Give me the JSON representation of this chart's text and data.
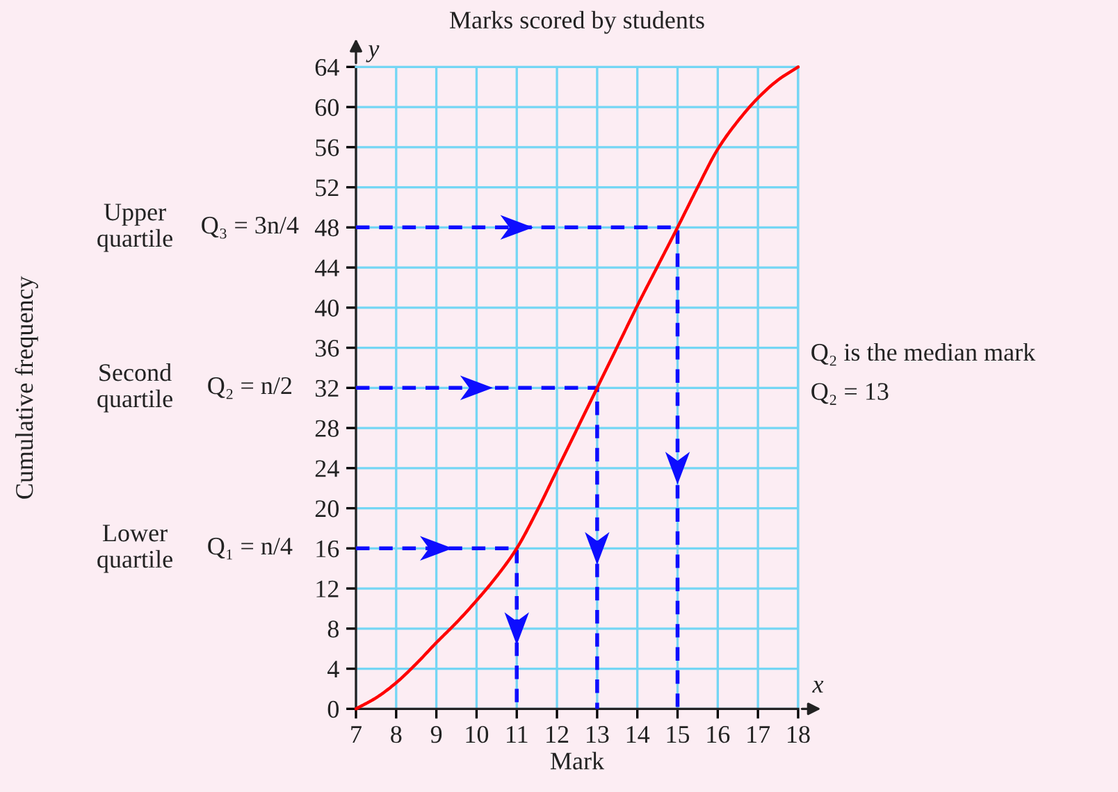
{
  "chart_data": {
    "type": "line",
    "title": "Marks scored by students",
    "xlabel": "Mark",
    "xlim": [
      7,
      18
    ],
    "ylim": [
      0,
      64
    ],
    "xticks": [
      7,
      8,
      9,
      10,
      11,
      12,
      13,
      14,
      15,
      16,
      17,
      18
    ],
    "yticks": [
      0,
      4,
      8,
      12,
      16,
      20,
      24,
      28,
      32,
      36,
      40,
      44,
      48,
      52,
      56,
      60,
      64
    ],
    "grid": true,
    "series": [
      {
        "color": "#ff0000",
        "x": [
          7,
          7.5,
          8,
          8.5,
          9,
          9.5,
          10,
          10.5,
          11,
          11.5,
          12,
          12.5,
          13,
          13.5,
          14,
          14.5,
          15,
          15.5,
          16,
          16.5,
          17,
          17.5,
          18
        ],
        "values": [
          0,
          1.1,
          2.6,
          4.5,
          6.6,
          8.6,
          10.8,
          13.2,
          16,
          19.7,
          23.8,
          27.9,
          32,
          36.1,
          40.2,
          44.1,
          48,
          52,
          55.8,
          58.6,
          60.9,
          62.7,
          64
        ]
      },
      {
        "color": "#0d0dff",
        "line_style": "dashed",
        "x": [
          7,
          11,
          11
        ],
        "values": [
          16,
          16,
          0
        ]
      },
      {
        "color": "#0d0dff",
        "line_style": "dashed",
        "x": [
          7,
          13,
          13
        ],
        "values": [
          32,
          32,
          0
        ]
      },
      {
        "color": "#0d0dff",
        "line_style": "dashed",
        "x": [
          7,
          15,
          15
        ],
        "values": [
          48,
          48,
          0
        ]
      }
    ],
    "annotations": [
      "y",
      "x",
      "Q₂ is the median mark",
      "Q₂ = 13",
      "Upper\nquartile",
      "Q₃ = 3n/4",
      "Second\nquartile",
      "Q₂ = n/2",
      "Lower\nquartile",
      "Q₁ = n/4",
      "Cumulative frequency"
    ]
  }
}
